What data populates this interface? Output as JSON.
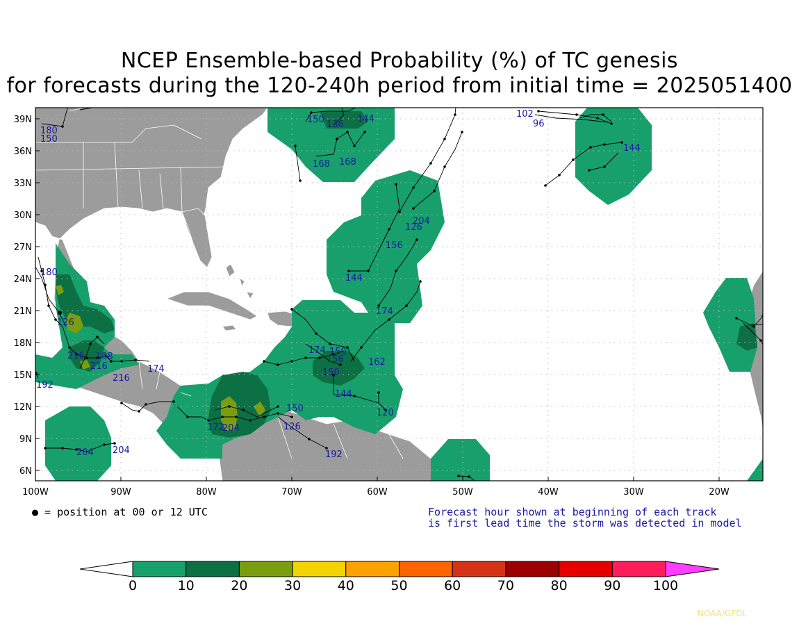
{
  "title_line1": "NCEP Ensemble-based Probability (%) of TC genesis",
  "title_line2": "for forecasts during the 120-240h period from initial time = 2025051400",
  "lat_labels": [
    "39N",
    "36N",
    "33N",
    "30N",
    "27N",
    "24N",
    "21N",
    "18N",
    "15N",
    "12N",
    "9N",
    "6N"
  ],
  "lon_labels": [
    "100W",
    "90W",
    "80W",
    "70W",
    "60W",
    "50W",
    "40W",
    "30W",
    "20W"
  ],
  "legend_position": "● = position at 00 or 12 UTC",
  "note_line1": "Forecast hour shown at beginning of each track",
  "note_line2": "is first lead time the storm was detected in model",
  "credit": "NOAA/GFDL",
  "colorbar": {
    "ticks": [
      "0",
      "10",
      "20",
      "30",
      "40",
      "50",
      "60",
      "70",
      "80",
      "90",
      "100"
    ],
    "colors": [
      "#17a06c",
      "#0d6f44",
      "#7a9e10",
      "#f4d400",
      "#fca200",
      "#fc6400",
      "#d43214",
      "#9c0000",
      "#e60000",
      "#ff1e5a"
    ],
    "over_color": "#ff3cff",
    "under_color": "#ffffff"
  },
  "colors": {
    "land": "#9c9c9c",
    "ocean": "#ffffff",
    "track": "#000000",
    "track_label": "#1a1aa0",
    "credit": "#f2e08a"
  },
  "track_labels": [
    "180",
    "150",
    "150",
    "136",
    "144",
    "168",
    "168",
    "102",
    "96",
    "144",
    "204",
    "126",
    "156",
    "144",
    "174",
    "180",
    "126",
    "216",
    "216",
    "216",
    "198",
    "174",
    "192",
    "204",
    "204",
    "174",
    "150",
    "156",
    "150",
    "162",
    "144",
    "120",
    "172",
    "204",
    "150",
    "126",
    "192"
  ]
}
